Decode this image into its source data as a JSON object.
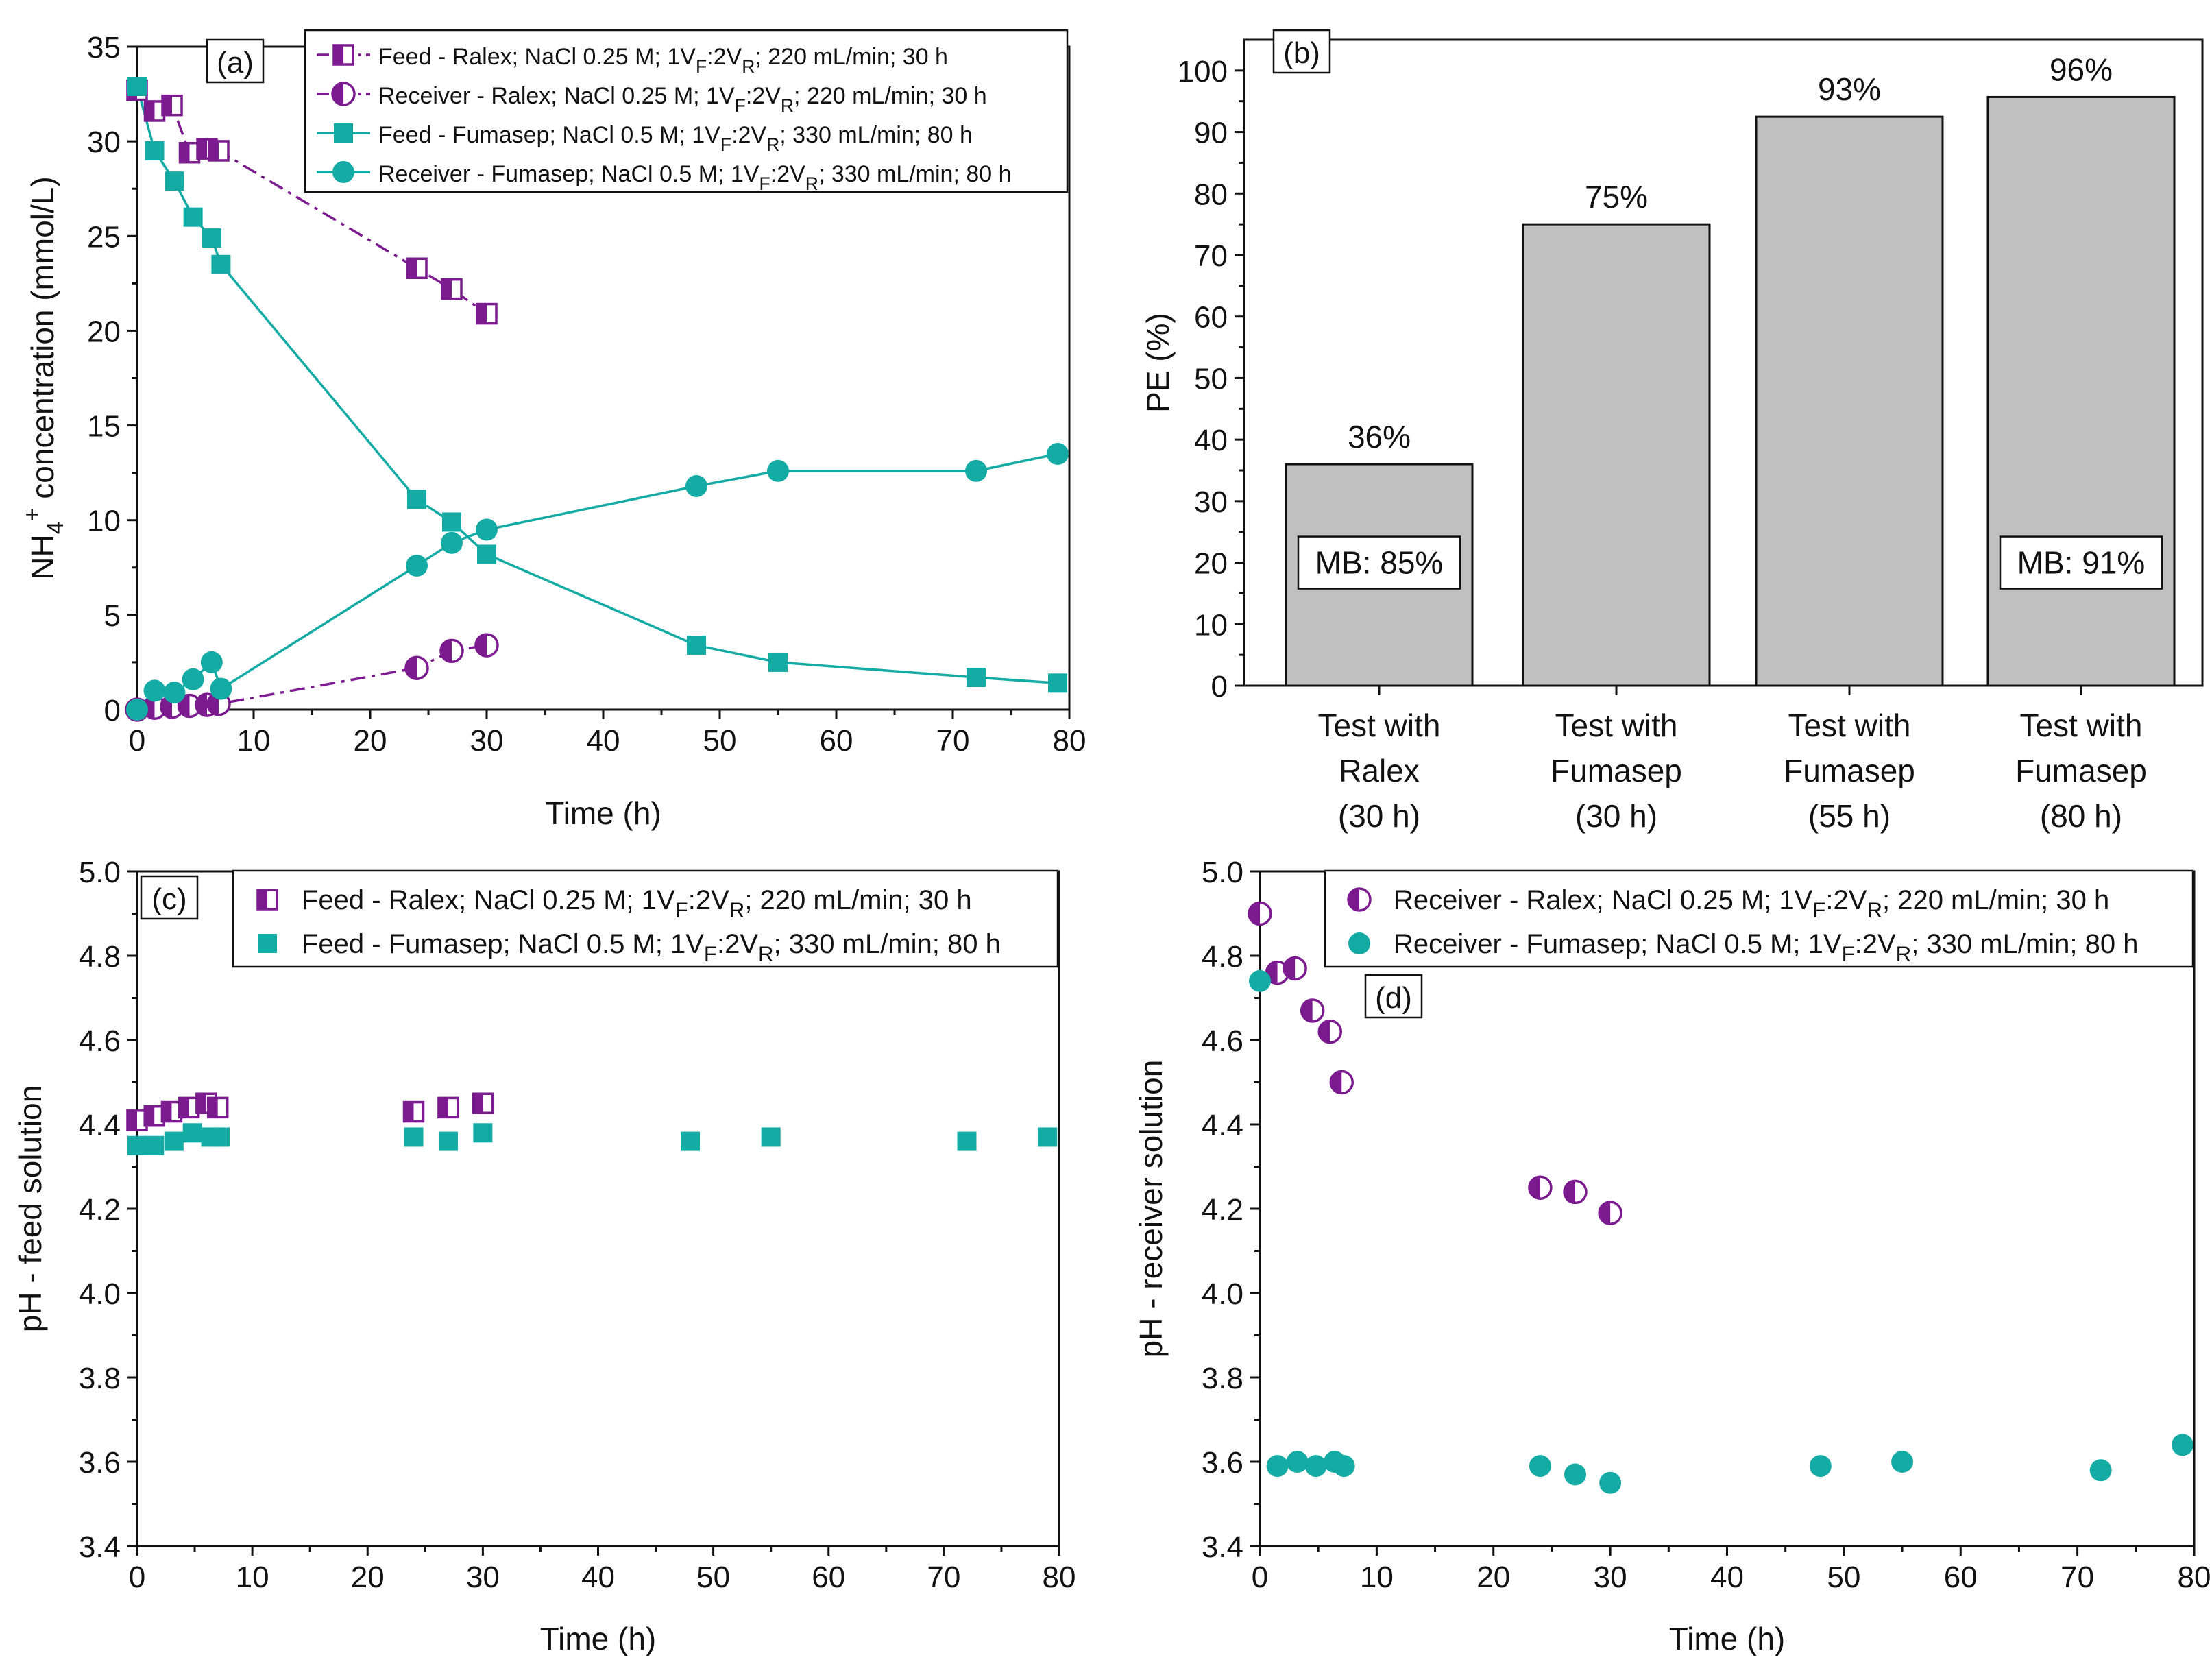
{
  "colors": {
    "purple": "#7B1B8F",
    "teal": "#14ABA5",
    "bar_fill": "#C0C0C0",
    "axis": "#111111"
  },
  "chart_data": [
    {
      "panel": "a",
      "type": "line",
      "panel_label": "(a)",
      "xlabel": "Time (h)",
      "ylabel_main": "NH",
      "ylabel_sub": "4",
      "ylabel_sup": "+",
      "ylabel_tail": " concentration (mmol/L)",
      "xlim": [
        0,
        80
      ],
      "ylim": [
        0,
        35
      ],
      "xticks": [
        0,
        10,
        20,
        30,
        40,
        50,
        60,
        70,
        80
      ],
      "yticks": [
        0,
        5,
        10,
        15,
        20,
        25,
        30,
        35
      ],
      "legend_position": "top-right",
      "series": [
        {
          "key": "feed_ralex",
          "name_a": "Feed - Ralex; NaCl 0.25 M; 1V",
          "name_b": ":2V",
          "name_c": "; 220 mL/min; 30 h",
          "sub1": "F",
          "sub2": "R",
          "color": "#7B1B8F",
          "marker": "square-half",
          "line": "dash-dot",
          "x": [
            0,
            1.5,
            3,
            4.5,
            6,
            7,
            24,
            27,
            30
          ],
          "y": [
            32.7,
            31.6,
            31.9,
            29.4,
            29.6,
            29.5,
            23.3,
            22.2,
            20.9
          ]
        },
        {
          "key": "receiver_ralex",
          "name_a": "Receiver - Ralex; NaCl 0.25 M; 1V",
          "name_b": ":2V",
          "name_c": "; 220 mL/min; 30 h",
          "sub1": "F",
          "sub2": "R",
          "color": "#7B1B8F",
          "marker": "circle-half",
          "line": "dash-dot",
          "x": [
            0,
            1.5,
            3,
            4.5,
            6,
            7,
            24,
            27,
            30
          ],
          "y": [
            0,
            0.1,
            0.15,
            0.2,
            0.25,
            0.3,
            2.2,
            3.1,
            3.4
          ]
        },
        {
          "key": "feed_fumasep",
          "name_a": "Feed - Fumasep; NaCl 0.5 M; 1V",
          "name_b": ":2V",
          "name_c": "; 330 mL/min; 80 h",
          "sub1": "F",
          "sub2": "R",
          "color": "#14ABA5",
          "marker": "square",
          "line": "solid",
          "x": [
            0,
            1.5,
            3.2,
            4.8,
            6.4,
            7.2,
            24,
            27,
            30,
            48,
            55,
            72,
            79
          ],
          "y": [
            32.9,
            29.5,
            27.9,
            26.0,
            24.9,
            23.5,
            11.1,
            9.9,
            8.2,
            3.4,
            2.5,
            1.7,
            1.4
          ]
        },
        {
          "key": "receiver_fumasep",
          "name_a": "Receiver - Fumasep; NaCl 0.5 M; 1V",
          "name_b": ":2V",
          "name_c": "; 330 mL/min; 80 h",
          "sub1": "F",
          "sub2": "R",
          "color": "#14ABA5",
          "marker": "circle",
          "line": "solid",
          "x": [
            0,
            1.5,
            3.2,
            4.8,
            6.4,
            7.2,
            24,
            27,
            30,
            48,
            55,
            72,
            79
          ],
          "y": [
            0,
            1.0,
            0.9,
            1.6,
            2.5,
            1.1,
            7.6,
            8.8,
            9.5,
            11.8,
            12.6,
            12.6,
            13.5
          ]
        }
      ]
    },
    {
      "panel": "b",
      "type": "bar",
      "panel_label": "(b)",
      "ylabel": "PE (%)",
      "ylim": [
        0,
        105
      ],
      "yticks": [
        0,
        10,
        20,
        30,
        40,
        50,
        60,
        70,
        80,
        90,
        100
      ],
      "categories": [
        [
          "Test with",
          "Ralex",
          "(30 h)"
        ],
        [
          "Test with",
          "Fumasep",
          "(30 h)"
        ],
        [
          "Test with",
          "Fumasep",
          "(55 h)"
        ],
        [
          "Test with",
          "Fumasep",
          "(80 h)"
        ]
      ],
      "values": [
        36,
        75,
        92.5,
        95.7
      ],
      "data_labels": [
        "36%",
        "75%",
        "93%",
        "96%"
      ],
      "annotations": [
        {
          "bar": 0,
          "text": "MB: 85%",
          "y": 20
        },
        {
          "bar": 3,
          "text": "MB: 91%",
          "y": 20
        }
      ]
    },
    {
      "panel": "c",
      "type": "scatter",
      "panel_label": "(c)",
      "xlabel": "Time (h)",
      "ylabel": "pH - feed solution",
      "xlim": [
        0,
        80
      ],
      "ylim": [
        3.4,
        5.0
      ],
      "xticks": [
        0,
        10,
        20,
        30,
        40,
        50,
        60,
        70,
        80
      ],
      "yticks": [
        "3.4",
        "3.6",
        "3.8",
        "4.0",
        "4.2",
        "4.4",
        "4.6",
        "4.8",
        "5.0"
      ],
      "legend_position": "top-right",
      "series": [
        {
          "key": "feed_ralex_ph",
          "name_a": "Feed - Ralex; NaCl 0.25 M; 1V",
          "name_b": ":2V",
          "name_c": "; 220 mL/min; 30 h",
          "sub1": "F",
          "sub2": "R",
          "color": "#7B1B8F",
          "marker": "square-half",
          "x": [
            0,
            1.5,
            3,
            4.5,
            6,
            7,
            24,
            27,
            30
          ],
          "y": [
            4.41,
            4.42,
            4.43,
            4.44,
            4.45,
            4.44,
            4.43,
            4.44,
            4.45
          ]
        },
        {
          "key": "feed_fumasep_ph",
          "name_a": "Feed - Fumasep; NaCl 0.5 M; 1V",
          "name_b": ":2V",
          "name_c": "; 330 mL/min; 80 h",
          "sub1": "F",
          "sub2": "R",
          "color": "#14ABA5",
          "marker": "square",
          "x": [
            0,
            1.5,
            3.2,
            4.8,
            6.4,
            7.2,
            24,
            27,
            30,
            48,
            55,
            72,
            79
          ],
          "y": [
            4.35,
            4.35,
            4.36,
            4.38,
            4.37,
            4.37,
            4.37,
            4.36,
            4.38,
            4.36,
            4.37,
            4.36,
            4.37
          ]
        }
      ]
    },
    {
      "panel": "d",
      "type": "scatter",
      "panel_label": "(d)",
      "xlabel": "Time (h)",
      "ylabel": "pH - receiver solution",
      "xlim": [
        0,
        80
      ],
      "ylim": [
        3.4,
        5.0
      ],
      "xticks": [
        0,
        10,
        20,
        30,
        40,
        50,
        60,
        70,
        80
      ],
      "yticks": [
        "3.4",
        "3.6",
        "3.8",
        "4.0",
        "4.2",
        "4.4",
        "4.6",
        "4.8",
        "5.0"
      ],
      "legend_position": "top-right",
      "series": [
        {
          "key": "receiver_ralex_ph",
          "name_a": "Receiver - Ralex; NaCl 0.25 M; 1V",
          "name_b": ":2V",
          "name_c": "; 220 mL/min; 30 h",
          "sub1": "F",
          "sub2": "R",
          "color": "#7B1B8F",
          "marker": "circle-half",
          "x": [
            0,
            1.5,
            3,
            4.5,
            6,
            7,
            24,
            27,
            30
          ],
          "y": [
            4.9,
            4.76,
            4.77,
            4.67,
            4.62,
            4.5,
            4.25,
            4.24,
            4.19
          ]
        },
        {
          "key": "receiver_fumasep_ph",
          "name_a": "Receiver - Fumasep; NaCl 0.5 M; 1V",
          "name_b": ":2V",
          "name_c": "; 330 mL/min; 80 h",
          "sub1": "F",
          "sub2": "R",
          "color": "#14ABA5",
          "marker": "circle",
          "x": [
            0,
            1.5,
            3.2,
            4.8,
            6.4,
            7.2,
            24,
            27,
            30,
            48,
            55,
            72,
            79
          ],
          "y": [
            4.74,
            3.59,
            3.6,
            3.59,
            3.6,
            3.59,
            3.59,
            3.57,
            3.55,
            3.59,
            3.6,
            3.58,
            3.64
          ]
        }
      ]
    }
  ]
}
